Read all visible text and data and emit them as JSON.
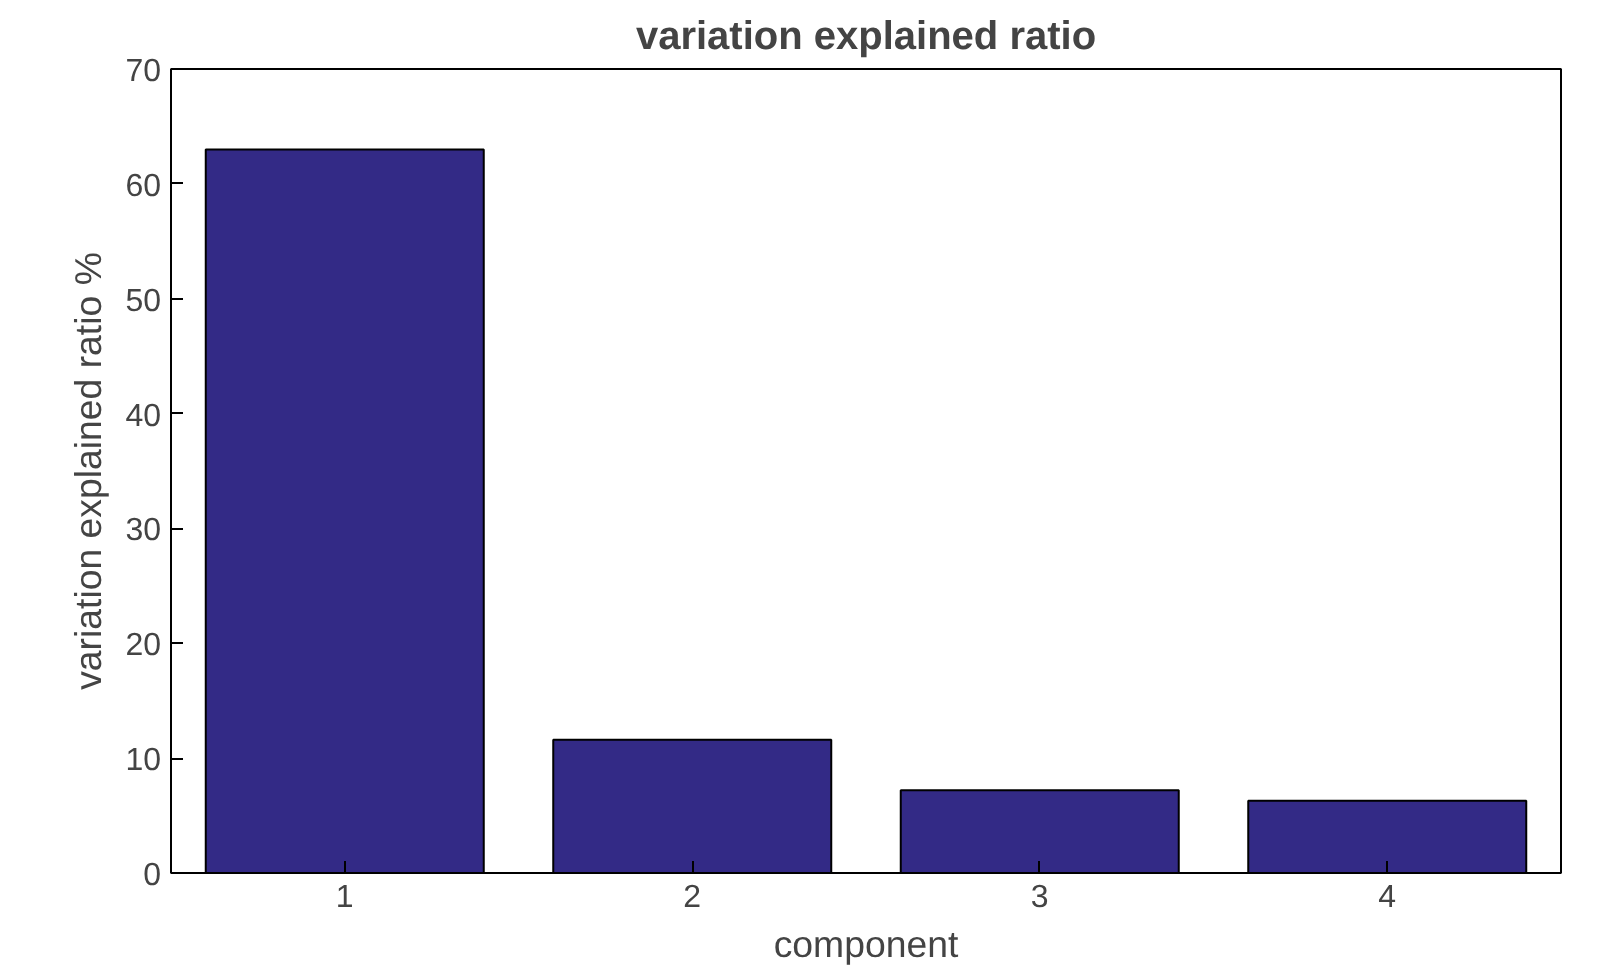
{
  "chart_data": {
    "type": "bar",
    "title": "variation explained ratio",
    "xlabel": "component",
    "ylabel": "variation explained ratio %",
    "categories": [
      "1",
      "2",
      "3",
      "4"
    ],
    "values": [
      63,
      11.6,
      7.2,
      6.3
    ],
    "color": "#332a86",
    "ylim": [
      0,
      70
    ],
    "yticks": [
      0,
      10,
      20,
      30,
      40,
      50,
      60,
      70
    ],
    "grid": false
  }
}
